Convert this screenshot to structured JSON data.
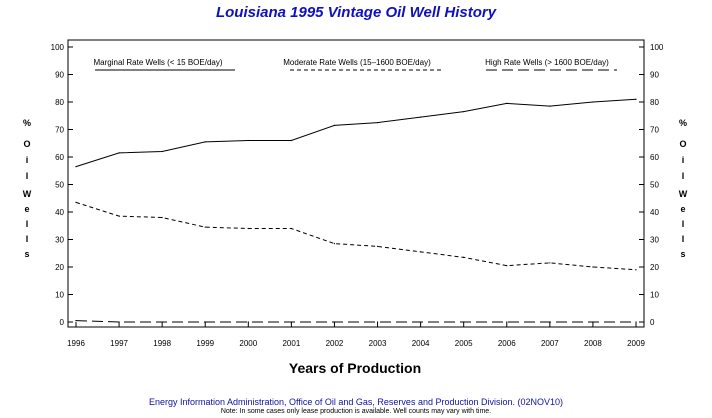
{
  "chart_data": {
    "type": "line",
    "title": "Louisiana 1995 Vintage Oil Well History",
    "xlabel": "Years of Production",
    "ylabel": "% Oil Wells",
    "ylabel_chars": [
      "%",
      "O",
      "i",
      "l",
      "W",
      "e",
      "l",
      "l",
      "s"
    ],
    "x": [
      1996,
      1997,
      1998,
      1999,
      2000,
      2001,
      2002,
      2003,
      2004,
      2005,
      2006,
      2007,
      2008,
      2009
    ],
    "x_tick_labels": [
      "1996",
      "1997",
      "1998",
      "1999",
      "2000",
      "2001",
      "2002",
      "2003",
      "2004",
      "2005",
      "2006",
      "2007",
      "2008",
      "2009"
    ],
    "ylim": [
      0,
      100
    ],
    "y_ticks": [
      0,
      10,
      20,
      30,
      40,
      50,
      60,
      70,
      80,
      90,
      100
    ],
    "y_tick_labels": [
      "0",
      "10",
      "20",
      "30",
      "40",
      "50",
      "60",
      "70",
      "80",
      "90",
      "100"
    ],
    "legend_position": "top",
    "grid": false,
    "series": [
      {
        "name": "Marginal Rate Wells (< 15 BOE/day)",
        "line_style": "solid",
        "values": [
          56.5,
          61.5,
          62,
          65.5,
          66,
          66,
          71.5,
          72.5,
          74.5,
          76.5,
          79.5,
          78.5,
          80,
          81
        ]
      },
      {
        "name": "Moderate Rate Wells (15–1600 BOE/day)",
        "line_style": "short-dash",
        "values": [
          43.5,
          38.5,
          38,
          34.5,
          34,
          34,
          28.5,
          27.5,
          25.5,
          23.5,
          20.5,
          21.5,
          20,
          19
        ]
      },
      {
        "name": "High Rate Wells (> 1600 BOE/day)",
        "line_style": "long-dash",
        "values": [
          0.5,
          0,
          0,
          0,
          0,
          0,
          0,
          0,
          0,
          0,
          0,
          0,
          0,
          0
        ]
      }
    ],
    "colors": {
      "title": "#1010c0",
      "lines": "#000000",
      "source": "#1010a0"
    }
  },
  "footer": {
    "source": "Energy Information Administration, Office of Oil and Gas, Reserves and Production Division. (02NOV10)",
    "note": "Note: In some cases only lease production is available. Well counts may vary with time."
  }
}
